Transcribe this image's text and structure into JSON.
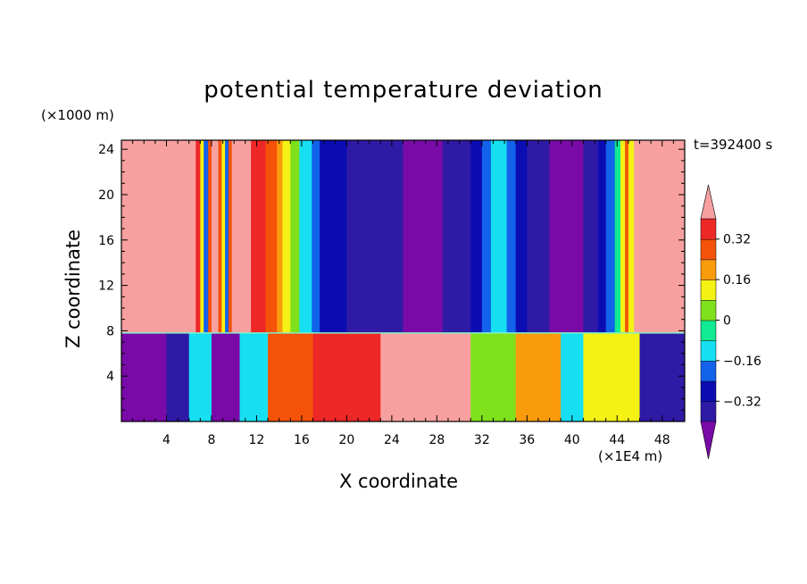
{
  "chart_data": {
    "type": "heatmap",
    "title": "potential temperature deviation",
    "xlabel": "X coordinate",
    "ylabel": "Z coordinate",
    "x_unit": "(×1E4 m)",
    "y_unit": "(×1000 m)",
    "time_label": "t=392400 s",
    "xlim": [
      0,
      50
    ],
    "ylim": [
      0,
      24.8
    ],
    "x_ticks": [
      4,
      8,
      12,
      16,
      20,
      24,
      28,
      32,
      36,
      40,
      44,
      48
    ],
    "y_ticks": [
      4,
      8,
      12,
      16,
      20,
      24
    ],
    "colorbar": {
      "levels": [
        -0.4,
        -0.32,
        -0.24,
        -0.16,
        -0.08,
        0,
        0.08,
        0.16,
        0.24,
        0.32,
        0.4
      ],
      "tick_values": [
        0.32,
        0.16,
        0,
        -0.16,
        -0.32
      ],
      "tick_labels": [
        "0.32",
        "0.16",
        "0",
        "−0.16",
        "−0.32"
      ],
      "colors": [
        "#7a0aa8",
        "#2e1aa5",
        "#0b0cb2",
        "#1262ea",
        "#16dff2",
        "#10ea92",
        "#7fe01c",
        "#f4f214",
        "#fa9b0c",
        "#f45209",
        "#ee2727",
        "#f8a0a0"
      ],
      "extend": "both"
    },
    "interface_height": 7.8,
    "upper_columns": [
      {
        "x0": 0,
        "x1": 6.6,
        "value": 0.45
      },
      {
        "x0": 6.6,
        "x1": 7.0,
        "value": 0.35
      },
      {
        "x0": 7.0,
        "x1": 7.3,
        "value": 0.12
      },
      {
        "x0": 7.3,
        "x1": 7.7,
        "value": -0.2
      },
      {
        "x0": 7.7,
        "x1": 8.0,
        "value": 0.28
      },
      {
        "x0": 8.0,
        "x1": 8.6,
        "value": 0.45
      },
      {
        "x0": 8.6,
        "x1": 8.9,
        "value": 0.3
      },
      {
        "x0": 8.9,
        "x1": 9.2,
        "value": 0.1
      },
      {
        "x0": 9.2,
        "x1": 9.5,
        "value": -0.18
      },
      {
        "x0": 9.5,
        "x1": 9.8,
        "value": 0.25
      },
      {
        "x0": 9.8,
        "x1": 11.5,
        "value": 0.45
      },
      {
        "x0": 11.5,
        "x1": 12.8,
        "value": 0.35
      },
      {
        "x0": 12.8,
        "x1": 13.8,
        "value": 0.27
      },
      {
        "x0": 13.8,
        "x1": 14.3,
        "value": 0.2
      },
      {
        "x0": 14.3,
        "x1": 15.0,
        "value": 0.13
      },
      {
        "x0": 15.0,
        "x1": 15.8,
        "value": 0.04
      },
      {
        "x0": 15.8,
        "x1": 16.9,
        "value": -0.1
      },
      {
        "x0": 16.9,
        "x1": 17.6,
        "value": -0.18
      },
      {
        "x0": 17.6,
        "x1": 20.0,
        "value": -0.27
      },
      {
        "x0": 20.0,
        "x1": 22.0,
        "value": -0.34
      },
      {
        "x0": 22.0,
        "x1": 25.0,
        "value": -0.38
      },
      {
        "x0": 25.0,
        "x1": 28.5,
        "value": -0.42
      },
      {
        "x0": 28.5,
        "x1": 31.0,
        "value": -0.38
      },
      {
        "x0": 31.0,
        "x1": 32.0,
        "value": -0.3
      },
      {
        "x0": 32.0,
        "x1": 32.8,
        "value": -0.2
      },
      {
        "x0": 32.8,
        "x1": 34.2,
        "value": -0.12
      },
      {
        "x0": 34.2,
        "x1": 35.0,
        "value": -0.2
      },
      {
        "x0": 35.0,
        "x1": 36.0,
        "value": -0.3
      },
      {
        "x0": 36.0,
        "x1": 38.0,
        "value": -0.36
      },
      {
        "x0": 38.0,
        "x1": 41.0,
        "value": -0.42
      },
      {
        "x0": 41.0,
        "x1": 42.3,
        "value": -0.36
      },
      {
        "x0": 42.3,
        "x1": 43.0,
        "value": -0.28
      },
      {
        "x0": 43.0,
        "x1": 43.8,
        "value": -0.18
      },
      {
        "x0": 43.8,
        "x1": 44.3,
        "value": -0.08
      },
      {
        "x0": 44.3,
        "x1": 44.7,
        "value": 0.12
      },
      {
        "x0": 44.7,
        "x1": 45.0,
        "value": 0.3
      },
      {
        "x0": 45.0,
        "x1": 45.5,
        "value": 0.12
      },
      {
        "x0": 45.5,
        "x1": 50.0,
        "value": 0.45
      }
    ],
    "lower_columns": [
      {
        "x0": 0,
        "x1": 4.0,
        "value": -0.42
      },
      {
        "x0": 4.0,
        "x1": 6.0,
        "value": -0.38
      },
      {
        "x0": 6.0,
        "x1": 8.0,
        "value": -0.16
      },
      {
        "x0": 8.0,
        "x1": 10.5,
        "value": -0.42
      },
      {
        "x0": 10.5,
        "x1": 13.0,
        "value": -0.1
      },
      {
        "x0": 13.0,
        "x1": 17.0,
        "value": 0.3
      },
      {
        "x0": 17.0,
        "x1": 23.0,
        "value": 0.38
      },
      {
        "x0": 23.0,
        "x1": 31.0,
        "value": 0.45
      },
      {
        "x0": 31.0,
        "x1": 35.0,
        "value": 0.05
      },
      {
        "x0": 35.0,
        "x1": 39.0,
        "value": 0.2
      },
      {
        "x0": 39.0,
        "x1": 41.0,
        "value": -0.1
      },
      {
        "x0": 41.0,
        "x1": 46.0,
        "value": 0.15
      },
      {
        "x0": 46.0,
        "x1": 50.0,
        "value": -0.4
      }
    ]
  }
}
